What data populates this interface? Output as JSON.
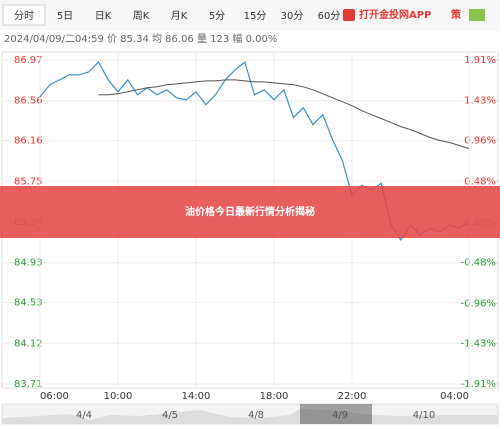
{
  "tabs": [
    "分时",
    "5日",
    "日K",
    "周K",
    "月K",
    "5分",
    "15分",
    "30分",
    "60分"
  ],
  "app_link": "打开金投网APP",
  "strategy": "策",
  "info": "2024/04/09/二04:59 价 85.34 均 86.06 量 123 幅 0.00%",
  "banner": "油价格今日最新行情分析揭秘",
  "navigator": {
    "labels": [
      "4/4",
      "4/5",
      "4/8",
      "4/9",
      "4/10"
    ]
  },
  "chart_data": {
    "type": "line",
    "series": [
      {
        "name": "价",
        "color": "#3b8fc4",
        "values": [
          86.6,
          86.72,
          86.77,
          86.82,
          86.82,
          86.85,
          86.95,
          86.77,
          86.65,
          86.77,
          86.62,
          86.69,
          86.62,
          86.67,
          86.59,
          86.57,
          86.65,
          86.52,
          86.62,
          86.77,
          86.87,
          86.95,
          86.62,
          86.67,
          86.57,
          86.67,
          86.39,
          86.49,
          86.32,
          86.42,
          86.17,
          85.96,
          85.61,
          85.71,
          85.66,
          85.73,
          85.31,
          85.16,
          85.31,
          85.21,
          85.28,
          85.24,
          85.31,
          85.28,
          85.34
        ]
      },
      {
        "name": "均",
        "color": "#555555",
        "values": [
          null,
          null,
          null,
          null,
          null,
          null,
          86.62,
          86.62,
          86.63,
          86.65,
          86.67,
          86.69,
          86.7,
          86.72,
          86.73,
          86.74,
          86.75,
          86.76,
          86.76,
          86.77,
          86.77,
          86.76,
          86.75,
          86.75,
          86.74,
          86.73,
          86.72,
          86.7,
          86.67,
          86.63,
          86.59,
          86.55,
          86.51,
          86.46,
          86.42,
          86.38,
          86.34,
          86.3,
          86.27,
          86.23,
          86.19,
          86.16,
          86.14,
          86.11,
          86.08
        ]
      }
    ],
    "xlim": [
      0,
      44
    ],
    "xticks": [
      {
        "value": 0,
        "label": "06:00"
      },
      {
        "value": 8,
        "label": "10:00"
      },
      {
        "value": 16,
        "label": "14:00"
      },
      {
        "value": 24,
        "label": "18:00"
      },
      {
        "value": 32,
        "label": "22:00"
      },
      {
        "value": 44,
        "label": "04:00"
      }
    ],
    "ylim": [
      83.71,
      86.97
    ],
    "yticks": [
      86.97,
      86.56,
      86.16,
      85.75,
      85.34,
      84.93,
      84.53,
      84.12,
      83.71
    ],
    "y2lim": [
      -1.91,
      1.91
    ],
    "y2ticks": [
      {
        "value": 1.91,
        "label": "1.91%"
      },
      {
        "value": 1.43,
        "label": "1.43%"
      },
      {
        "value": 0.96,
        "label": "0.96%"
      },
      {
        "value": 0.48,
        "label": "0.48%"
      },
      {
        "value": 0.0,
        "label": "0.00%"
      },
      {
        "value": -0.48,
        "label": "-0.48%"
      },
      {
        "value": -0.96,
        "label": "-0.96%"
      },
      {
        "value": -1.43,
        "label": "-1.43%"
      },
      {
        "value": -1.91,
        "label": "-1.91%"
      }
    ],
    "reference": 85.34,
    "up_color": "#e53935",
    "down_color": "#2e9d3a",
    "flat_color": "#888888",
    "grid": true
  }
}
